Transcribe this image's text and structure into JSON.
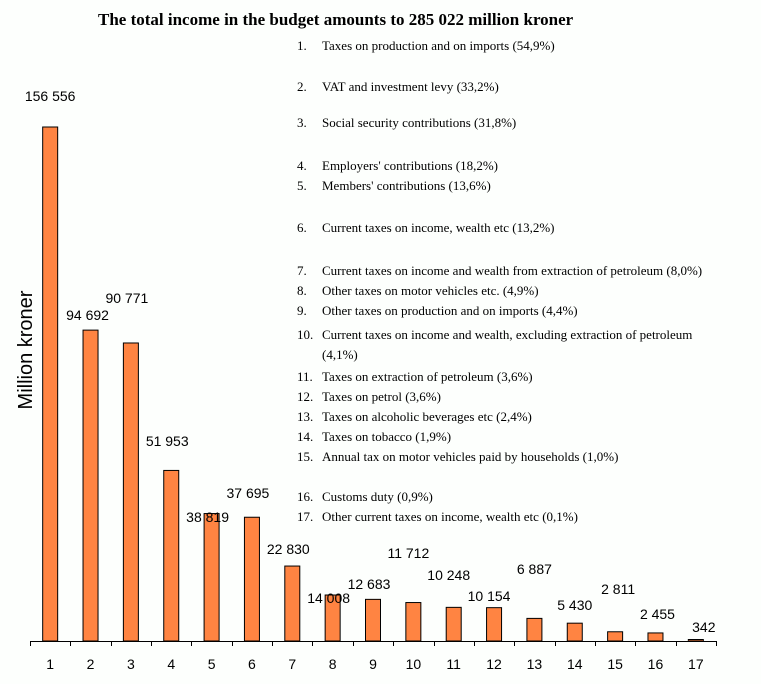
{
  "chart_data": {
    "type": "bar",
    "title": "The total income in the budget amounts to 285 022 million kroner",
    "xlabel": "",
    "ylabel": "Million kroner",
    "categories": [
      "1",
      "2",
      "3",
      "4",
      "5",
      "6",
      "7",
      "8",
      "9",
      "10",
      "11",
      "12",
      "13",
      "14",
      "15",
      "16",
      "17"
    ],
    "values": [
      156556,
      94692,
      90771,
      51953,
      38819,
      37695,
      22830,
      14008,
      12683,
      11712,
      10248,
      10154,
      6887,
      5430,
      2811,
      2455,
      342
    ],
    "data_labels": [
      "156 556",
      "94 692",
      "90 771",
      "51 953",
      "38 819",
      "37 695",
      "22 830",
      "14 008",
      "12 683",
      "11 712",
      "10 248",
      "10 154",
      "6 887",
      "5 430",
      "2 811",
      "2 455",
      "342"
    ],
    "ylim": [
      0,
      160000
    ],
    "grid": false,
    "bar_color": "#ff8442",
    "bar_outline": "#000000",
    "legend_placement": "top-right",
    "legend": [
      {
        "num": "1.",
        "text": "Taxes on production and on imports (54,9%)"
      },
      {
        "num": "2.",
        "text": "VAT and investment levy (33,2%)"
      },
      {
        "num": "3.",
        "text": "Social security contributions (31,8%)"
      },
      {
        "num": "4.",
        "text": "Employers' contributions (18,2%)"
      },
      {
        "num": "5.",
        "text": "Members' contributions (13,6%)"
      },
      {
        "num": "6.",
        "text": "Current taxes on income, wealth etc (13,2%)"
      },
      {
        "num": "7.",
        "text": "Current taxes on income and wealth from extraction of petroleum (8,0%)"
      },
      {
        "num": "8.",
        "text": "Other taxes on motor vehicles etc. (4,9%)"
      },
      {
        "num": "9.",
        "text": "Other taxes on production and on imports (4,4%)"
      },
      {
        "num": "10.",
        "text": "Current taxes on income and wealth, excluding extraction of petroleum",
        "text2": "(4,1%)"
      },
      {
        "num": "11.",
        "text": "Taxes on extraction of petroleum (3,6%)"
      },
      {
        "num": "12.",
        "text": "Taxes on petrol (3,6%)"
      },
      {
        "num": "13.",
        "text": "Taxes on alcoholic beverages etc (2,4%)"
      },
      {
        "num": "14.",
        "text": "Taxes on tobacco (1,9%)"
      },
      {
        "num": "15.",
        "text": "Annual tax on motor vehicles paid by households (1,0%)"
      },
      {
        "num": "16.",
        "text": "Customs duty (0,9%)"
      },
      {
        "num": "17.",
        "text": "Other current taxes on income, wealth etc (0,1%)"
      }
    ]
  }
}
